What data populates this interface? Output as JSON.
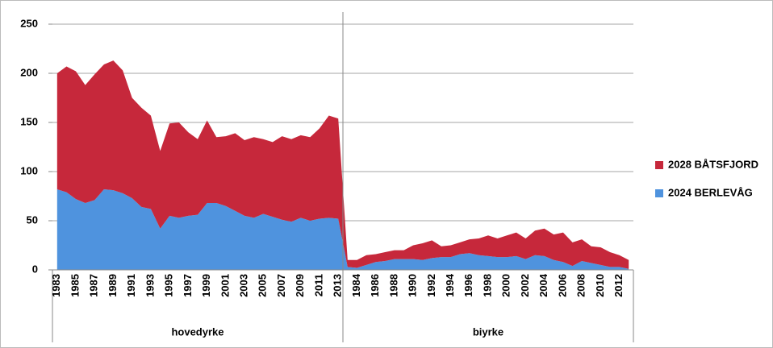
{
  "chart_data": {
    "type": "stacked-area",
    "groups": [
      "hovedyrke",
      "biyrke"
    ],
    "categories": [
      "1983",
      null,
      "1985",
      null,
      "1987",
      null,
      "1989",
      null,
      "1991",
      null,
      "1993",
      null,
      "1995",
      null,
      "1997",
      null,
      "1999",
      null,
      "2001",
      null,
      "2003",
      null,
      "2005",
      null,
      "2007",
      null,
      "2009",
      null,
      "2011",
      null,
      "2013",
      null,
      "1984",
      null,
      "1986",
      null,
      "1988",
      null,
      "1990",
      null,
      "1992",
      null,
      "1994",
      null,
      "1996",
      null,
      "1998",
      null,
      "2000",
      null,
      "2002",
      null,
      "2004",
      null,
      "2006",
      null,
      "2008",
      null,
      "2010",
      null,
      "2012",
      null
    ],
    "series": [
      {
        "name": "2024 BERLEVÅG",
        "color": "#4f93de",
        "values": [
          82,
          79,
          72,
          68,
          71,
          82,
          81,
          78,
          73,
          64,
          62,
          42,
          55,
          53,
          55,
          56,
          68,
          68,
          65,
          60,
          55,
          53,
          57,
          54,
          51,
          49,
          53,
          50,
          52,
          53,
          52,
          3,
          2,
          5,
          8,
          9,
          11,
          11,
          11,
          10,
          12,
          13,
          13,
          16,
          17,
          15,
          14,
          13,
          13,
          14,
          11,
          15,
          14,
          10,
          8,
          4,
          9,
          7,
          5,
          3,
          3,
          1
        ]
      },
      {
        "name": "2028 BÅTSFJORD",
        "color": "#c6283b",
        "values": [
          118,
          128,
          130,
          120,
          128,
          127,
          132,
          125,
          102,
          101,
          95,
          79,
          94,
          97,
          85,
          77,
          84,
          67,
          71,
          79,
          77,
          82,
          76,
          76,
          85,
          84,
          84,
          85,
          92,
          104,
          102,
          7,
          8,
          10,
          8,
          9,
          9,
          9,
          14,
          17,
          18,
          11,
          12,
          12,
          14,
          17,
          21,
          19,
          22,
          24,
          21,
          25,
          28,
          26,
          30,
          24,
          22,
          17,
          18,
          15,
          12,
          9
        ]
      }
    ],
    "ylim": [
      0,
      250
    ],
    "yticks": [
      0,
      50,
      100,
      150,
      200,
      250
    ],
    "grid": true,
    "legend": "right"
  }
}
